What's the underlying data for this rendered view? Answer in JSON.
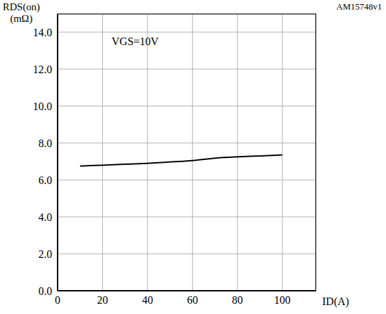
{
  "chart_data": {
    "type": "line",
    "y_label": "RDS(on) (mΩ)",
    "x_label": "ID(A)",
    "annotation": "VGS=10V",
    "figure_id": "AM15748v1",
    "x": [
      10,
      20,
      30,
      40,
      50,
      60,
      70,
      80,
      90,
      100
    ],
    "values": [
      6.75,
      6.8,
      6.85,
      6.9,
      6.97,
      7.05,
      7.18,
      7.25,
      7.3,
      7.35
    ],
    "color": "#000000",
    "xlim": [
      0,
      115
    ],
    "xticks": [
      0,
      20,
      40,
      60,
      80,
      100
    ],
    "ylim": [
      0,
      15
    ],
    "yticks": [
      {
        "value": 0,
        "label": "0.0"
      },
      {
        "value": 2,
        "label": "2.0"
      },
      {
        "value": 4,
        "label": "4.0"
      },
      {
        "value": 6,
        "label": "6.0"
      },
      {
        "value": 8,
        "label": "8.0"
      },
      {
        "value": 10,
        "label": "10.0"
      },
      {
        "value": 12,
        "label": "12.0"
      },
      {
        "value": 14,
        "label": "14.0"
      }
    ],
    "grid": true
  }
}
